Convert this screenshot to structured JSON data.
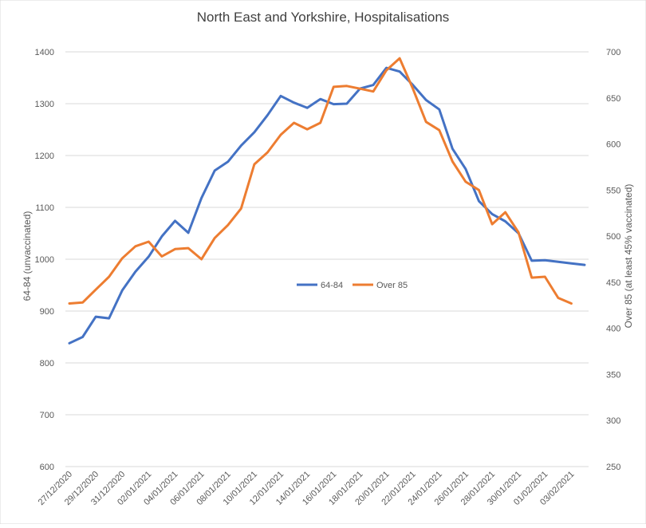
{
  "chart_data": {
    "type": "line",
    "title": "North East and Yorkshire, Hospitalisations",
    "ylabel_left": "64-84 (unvaccinated)",
    "ylabel_right": "Over 85 (at least 45% vaccinated)",
    "ylim_left": [
      600,
      1400
    ],
    "ylim_right": [
      250,
      700
    ],
    "yticks_left": [
      600,
      700,
      800,
      900,
      1000,
      1100,
      1200,
      1300,
      1400
    ],
    "yticks_right": [
      250,
      300,
      350,
      400,
      450,
      500,
      550,
      600,
      650,
      700
    ],
    "grid": "horizontal",
    "legend_position": "center",
    "x": [
      "27/12/2020",
      "28/12/2020",
      "29/12/2020",
      "30/12/2020",
      "31/12/2020",
      "01/01/2021",
      "02/01/2021",
      "03/01/2021",
      "04/01/2021",
      "05/01/2021",
      "06/01/2021",
      "07/01/2021",
      "08/01/2021",
      "09/01/2021",
      "10/01/2021",
      "11/01/2021",
      "12/01/2021",
      "13/01/2021",
      "14/01/2021",
      "15/01/2021",
      "16/01/2021",
      "17/01/2021",
      "18/01/2021",
      "19/01/2021",
      "20/01/2021",
      "21/01/2021",
      "22/01/2021",
      "23/01/2021",
      "24/01/2021",
      "25/01/2021",
      "26/01/2021",
      "27/01/2021",
      "28/01/2021",
      "29/01/2021",
      "30/01/2021",
      "31/01/2021",
      "01/02/2021",
      "02/02/2021",
      "03/02/2021",
      "04/02/2021"
    ],
    "xtick_labels": [
      "27/12/2020",
      "29/12/2020",
      "31/12/2020",
      "02/01/2021",
      "04/01/2021",
      "06/01/2021",
      "08/01/2021",
      "10/01/2021",
      "12/01/2021",
      "14/01/2021",
      "16/01/2021",
      "18/01/2021",
      "20/01/2021",
      "22/01/2021",
      "24/01/2021",
      "26/01/2021",
      "28/01/2021",
      "30/01/2021",
      "01/02/2021",
      "03/02/2021"
    ],
    "series": [
      {
        "name": "64-84",
        "axis": "left",
        "color": "#4472C4",
        "values": [
          838,
          850,
          889,
          886,
          940,
          976,
          1005,
          1044,
          1074,
          1051,
          1118,
          1171,
          1188,
          1219,
          1245,
          1278,
          1315,
          1302,
          1292,
          1309,
          1299,
          1300,
          1329,
          1336,
          1369,
          1362,
          1336,
          1307,
          1289,
          1213,
          1174,
          1112,
          1087,
          1073,
          1050,
          997,
          998,
          995,
          992,
          989
        ]
      },
      {
        "name": "Over 85",
        "axis": "right",
        "color": "#ED7D31",
        "values": [
          427,
          428,
          442,
          456,
          476,
          489,
          494,
          478,
          486,
          487,
          475,
          498,
          512,
          530,
          578,
          591,
          610,
          623,
          616,
          623,
          662,
          663,
          660,
          657,
          680,
          693,
          660,
          624,
          615,
          581,
          559,
          550,
          513,
          526,
          504,
          455,
          456,
          433,
          427,
          null
        ]
      }
    ]
  }
}
